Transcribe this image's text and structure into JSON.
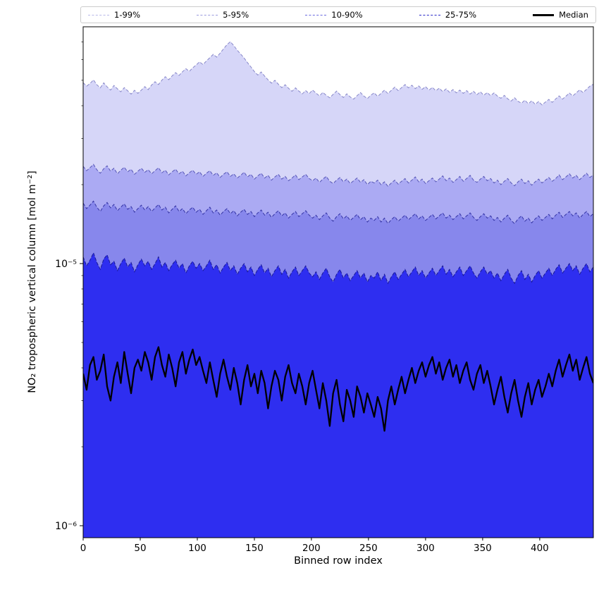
{
  "chart_data": {
    "type": "line",
    "title": "",
    "xlabel": "Binned row index",
    "ylabel": "NO₂ tropospheric vertical column [mol m⁻²]",
    "xlim": [
      0,
      447
    ],
    "ylim": [
      9e-07,
      8e-05
    ],
    "yscale": "log",
    "grid": false,
    "legend_position": "top",
    "legend": [
      {
        "label": "1-99%",
        "style": "dashed",
        "color": "#b8b8e8"
      },
      {
        "label": "5-95%",
        "style": "dashed",
        "color": "#9a9ade"
      },
      {
        "label": "10-90%",
        "style": "dashed",
        "color": "#6a6ae0"
      },
      {
        "label": "25-75%",
        "style": "dashed",
        "color": "#2a2ac8"
      },
      {
        "label": "Median",
        "style": "solid",
        "color": "#000000"
      }
    ],
    "xticks": [
      0,
      50,
      100,
      150,
      200,
      250,
      300,
      350,
      400
    ],
    "yticks": [
      {
        "value": 1e-05,
        "label": "10⁻⁵"
      },
      {
        "value": 1e-06,
        "label": "10⁻⁶"
      }
    ],
    "x_start": 0,
    "x_step": 3,
    "value_scale": 1e-06,
    "fill_colors": [
      "#d6d6f8",
      "#abaaf3",
      "#8787ec",
      "#2e2ef0"
    ],
    "edge_color": "#14148c",
    "edge_alphas": [
      0.45,
      0.6,
      0.75,
      0.9
    ],
    "median_color": "#000000",
    "series": [
      {
        "name": "p99_upper",
        "band_label": "1-99%",
        "values": [
          49,
          47.5,
          48.6,
          50.2,
          48.1,
          46.8,
          48.9,
          47.2,
          45.9,
          47.8,
          46.4,
          45.2,
          46.9,
          45.6,
          44.3,
          45.8,
          44.6,
          45.9,
          47.3,
          46.1,
          48.0,
          49.4,
          48.2,
          50.1,
          51.6,
          50.3,
          52.0,
          53.5,
          52.2,
          53.9,
          55.4,
          54.1,
          55.8,
          57.2,
          58.8,
          57.4,
          59.3,
          61.0,
          62.8,
          61.3,
          63.5,
          65.9,
          68.4,
          70.2,
          67.8,
          65.1,
          63.0,
          60.8,
          58.4,
          56.2,
          54.0,
          52.4,
          53.8,
          51.9,
          50.2,
          48.8,
          50.0,
          48.3,
          46.9,
          48.1,
          46.6,
          45.4,
          46.8,
          45.5,
          44.4,
          45.7,
          44.5,
          45.9,
          44.7,
          43.6,
          45.0,
          43.8,
          42.9,
          44.2,
          45.5,
          44.1,
          43.0,
          44.4,
          43.2,
          42.4,
          43.7,
          44.9,
          43.5,
          42.6,
          43.9,
          44.8,
          43.4,
          44.6,
          45.9,
          44.5,
          45.8,
          47.1,
          45.7,
          46.9,
          48.2,
          46.8,
          47.9,
          46.5,
          47.6,
          46.2,
          47.3,
          45.9,
          47.0,
          45.6,
          46.7,
          45.3,
          46.4,
          45.0,
          46.1,
          44.8,
          45.9,
          44.6,
          45.7,
          44.3,
          45.4,
          44.1,
          45.2,
          43.9,
          44.9,
          43.7,
          44.8,
          43.5,
          42.7,
          43.8,
          42.5,
          41.7,
          42.9,
          41.6,
          40.9,
          42.0,
          40.7,
          41.8,
          40.5,
          41.5,
          40.3,
          41.3,
          42.3,
          41.2,
          42.5,
          43.6,
          42.4,
          43.5,
          44.7,
          43.6,
          44.8,
          46.0,
          44.9,
          46.2,
          47.5,
          48.3
        ]
      },
      {
        "name": "p95_upper",
        "band_label": "5-95%",
        "values": [
          23.5,
          22.6,
          23.2,
          23.9,
          22.8,
          22.1,
          23.0,
          23.6,
          22.5,
          23.1,
          22.0,
          22.7,
          23.3,
          22.4,
          22.9,
          21.9,
          22.5,
          23.1,
          22.3,
          22.8,
          22.0,
          22.6,
          23.2,
          22.2,
          22.7,
          21.8,
          22.4,
          22.9,
          22.0,
          22.5,
          21.6,
          22.2,
          22.7,
          21.9,
          22.4,
          21.5,
          22.1,
          22.6,
          21.7,
          22.2,
          21.3,
          21.9,
          22.4,
          21.5,
          22.0,
          21.2,
          21.7,
          22.3,
          21.4,
          21.9,
          21.0,
          21.6,
          22.1,
          21.2,
          21.7,
          20.8,
          21.4,
          21.9,
          21.0,
          21.5,
          20.7,
          21.2,
          21.8,
          20.9,
          21.4,
          21.9,
          21.1,
          20.7,
          21.2,
          20.4,
          21.0,
          21.5,
          20.6,
          20.2,
          20.8,
          21.3,
          20.5,
          21.0,
          20.2,
          20.7,
          21.2,
          20.4,
          20.9,
          20.0,
          20.6,
          20.3,
          20.8,
          20.0,
          20.5,
          19.7,
          20.3,
          20.8,
          20.1,
          20.6,
          21.1,
          20.3,
          20.8,
          21.4,
          20.5,
          21.0,
          20.2,
          20.7,
          21.2,
          20.5,
          21.0,
          21.6,
          20.7,
          21.2,
          20.4,
          20.9,
          21.5,
          20.6,
          21.1,
          21.7,
          20.8,
          20.4,
          21.0,
          21.5,
          20.7,
          21.1,
          20.3,
          20.8,
          20.0,
          20.6,
          21.1,
          20.3,
          19.8,
          20.5,
          21.0,
          20.2,
          20.7,
          19.9,
          20.5,
          21.0,
          20.3,
          20.8,
          21.3,
          20.6,
          21.1,
          21.8,
          20.9,
          21.4,
          22.0,
          21.2,
          21.7,
          20.9,
          21.5,
          22.1,
          21.3,
          21.8
        ]
      },
      {
        "name": "p90_upper",
        "band_label": "10-90%",
        "values": [
          17.0,
          16.2,
          16.7,
          17.3,
          16.4,
          15.8,
          16.6,
          17.1,
          16.3,
          16.8,
          15.9,
          16.4,
          16.9,
          16.1,
          16.5,
          15.7,
          16.2,
          16.7,
          16.0,
          16.5,
          15.8,
          16.3,
          16.8,
          16.0,
          16.4,
          15.6,
          16.1,
          16.6,
          15.8,
          16.2,
          15.5,
          16.0,
          16.4,
          15.7,
          16.1,
          15.4,
          15.9,
          16.4,
          15.6,
          16.0,
          15.3,
          15.8,
          16.2,
          15.5,
          15.9,
          15.2,
          15.7,
          16.1,
          15.4,
          15.8,
          15.1,
          15.6,
          16.0,
          15.3,
          15.7,
          15.0,
          15.5,
          15.9,
          15.2,
          15.6,
          14.9,
          15.4,
          15.8,
          15.1,
          15.5,
          15.9,
          15.3,
          14.9,
          15.3,
          14.7,
          15.2,
          15.6,
          14.9,
          14.5,
          15.1,
          15.5,
          14.8,
          15.2,
          14.6,
          15.0,
          15.4,
          14.7,
          15.1,
          14.4,
          14.9,
          14.6,
          15.1,
          14.4,
          14.9,
          14.2,
          14.7,
          15.1,
          14.5,
          14.9,
          15.3,
          14.7,
          15.1,
          15.5,
          14.8,
          15.2,
          14.6,
          15.0,
          15.4,
          14.8,
          15.2,
          15.6,
          14.9,
          15.3,
          14.7,
          15.1,
          15.5,
          14.8,
          15.2,
          15.6,
          15.0,
          14.6,
          15.1,
          15.5,
          14.9,
          15.2,
          14.6,
          15.0,
          14.4,
          14.9,
          15.3,
          14.6,
          14.2,
          14.8,
          15.2,
          14.5,
          14.9,
          14.3,
          14.8,
          15.2,
          14.6,
          15.0,
          15.4,
          14.8,
          15.3,
          15.7,
          15.0,
          15.4,
          15.8,
          15.2,
          15.6,
          14.9,
          15.4,
          15.8,
          15.1,
          15.5
        ]
      },
      {
        "name": "p75_upper",
        "band_label": "25-75%",
        "values": [
          10.6,
          9.8,
          10.3,
          11.0,
          10.1,
          9.5,
          10.4,
          10.8,
          9.9,
          10.2,
          9.4,
          10.0,
          10.5,
          9.7,
          10.1,
          9.3,
          9.9,
          10.4,
          9.8,
          10.2,
          9.5,
          10.0,
          10.6,
          9.7,
          10.1,
          9.4,
          9.9,
          10.3,
          9.6,
          10.0,
          9.2,
          9.8,
          10.2,
          9.6,
          10.0,
          9.4,
          9.8,
          10.3,
          9.5,
          9.9,
          9.2,
          9.7,
          10.1,
          9.4,
          9.8,
          9.1,
          9.6,
          10.0,
          9.3,
          9.7,
          9.0,
          9.5,
          9.9,
          9.2,
          9.6,
          8.9,
          9.4,
          9.8,
          9.1,
          9.5,
          8.8,
          9.3,
          9.7,
          9.0,
          9.4,
          9.8,
          9.2,
          8.9,
          9.3,
          8.7,
          9.2,
          9.6,
          8.9,
          8.5,
          9.1,
          9.5,
          8.8,
          9.2,
          8.6,
          9.0,
          9.4,
          8.8,
          9.2,
          8.5,
          9.0,
          8.8,
          9.3,
          8.6,
          9.1,
          8.4,
          8.9,
          9.3,
          8.7,
          9.1,
          9.5,
          8.9,
          9.3,
          9.7,
          9.0,
          9.4,
          8.8,
          9.2,
          9.6,
          9.0,
          9.4,
          9.8,
          9.1,
          9.5,
          8.9,
          9.3,
          9.7,
          9.0,
          9.4,
          9.8,
          9.2,
          8.8,
          9.3,
          9.7,
          9.1,
          9.4,
          8.8,
          9.2,
          8.6,
          9.1,
          9.5,
          8.8,
          8.4,
          9.0,
          9.4,
          8.7,
          9.1,
          8.5,
          9.0,
          9.4,
          8.8,
          9.2,
          9.6,
          9.0,
          9.5,
          9.9,
          9.2,
          9.6,
          10.0,
          9.4,
          9.8,
          9.1,
          9.6,
          10.0,
          9.3,
          9.7
        ]
      },
      {
        "name": "median",
        "band_label": "Median",
        "values": [
          3.8,
          3.3,
          4.1,
          4.4,
          3.6,
          3.9,
          4.5,
          3.4,
          3.0,
          3.7,
          4.2,
          3.5,
          4.6,
          3.8,
          3.2,
          4.0,
          4.3,
          3.9,
          4.6,
          4.2,
          3.6,
          4.4,
          4.8,
          4.1,
          3.7,
          4.5,
          4.0,
          3.4,
          4.2,
          4.6,
          3.8,
          4.3,
          4.7,
          4.1,
          4.4,
          3.9,
          3.5,
          4.2,
          3.6,
          3.1,
          3.8,
          4.3,
          3.7,
          3.3,
          4.0,
          3.5,
          2.9,
          3.6,
          4.1,
          3.4,
          3.8,
          3.2,
          3.9,
          3.5,
          2.8,
          3.4,
          3.9,
          3.6,
          3.0,
          3.7,
          4.1,
          3.5,
          3.2,
          3.8,
          3.4,
          2.9,
          3.5,
          3.9,
          3.3,
          2.8,
          3.5,
          3.0,
          2.4,
          3.2,
          3.6,
          2.9,
          2.5,
          3.3,
          3.0,
          2.6,
          3.4,
          3.1,
          2.7,
          3.2,
          2.9,
          2.6,
          3.1,
          2.8,
          2.3,
          3.0,
          3.4,
          2.9,
          3.3,
          3.7,
          3.2,
          3.6,
          4.0,
          3.5,
          3.9,
          4.2,
          3.7,
          4.1,
          4.4,
          3.8,
          4.2,
          3.6,
          4.0,
          4.3,
          3.7,
          4.1,
          3.5,
          3.9,
          4.2,
          3.6,
          3.3,
          3.8,
          4.1,
          3.5,
          3.9,
          3.4,
          2.9,
          3.3,
          3.7,
          3.1,
          2.7,
          3.2,
          3.6,
          3.0,
          2.6,
          3.1,
          3.5,
          2.9,
          3.3,
          3.6,
          3.1,
          3.4,
          3.8,
          3.4,
          3.9,
          4.3,
          3.7,
          4.1,
          4.5,
          3.9,
          4.3,
          3.6,
          4.0,
          4.4,
          3.8,
          3.5
        ]
      }
    ]
  }
}
